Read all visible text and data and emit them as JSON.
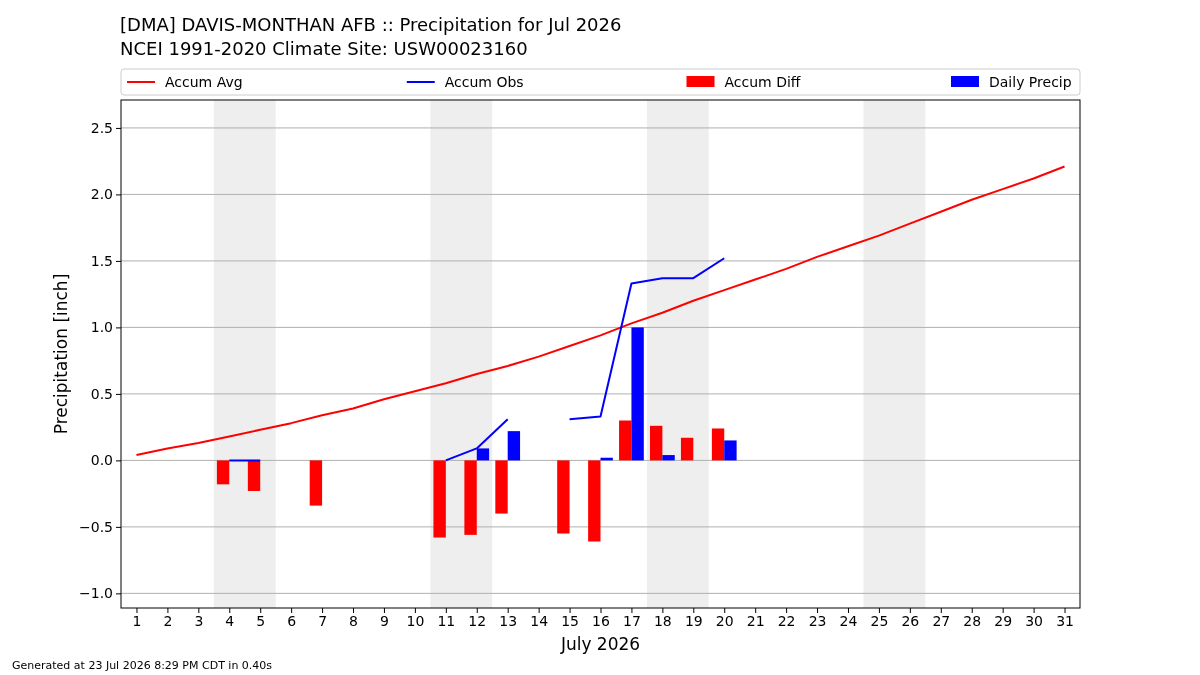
{
  "chart_data": {
    "type": "bar",
    "title": "[DMA] DAVIS-MONTHAN AFB :: Precipitation for Jul 2026",
    "subtitle": "NCEI 1991-2020 Climate Site: USW00023160",
    "xlabel": "July 2026",
    "ylabel": "Precipitation [inch]",
    "x": [
      1,
      2,
      3,
      4,
      5,
      6,
      7,
      8,
      9,
      10,
      11,
      12,
      13,
      14,
      15,
      16,
      17,
      18,
      19,
      20,
      21,
      22,
      23,
      24,
      25,
      26,
      27,
      28,
      29,
      30,
      31
    ],
    "xlim": [
      0.5,
      31.5
    ],
    "xticks": [
      1,
      2,
      3,
      4,
      5,
      6,
      7,
      8,
      9,
      10,
      11,
      12,
      13,
      14,
      15,
      16,
      17,
      18,
      19,
      20,
      21,
      22,
      23,
      24,
      25,
      26,
      27,
      28,
      29,
      30,
      31
    ],
    "ylim": [
      -1.11,
      2.71
    ],
    "yticks": [
      {
        "value": -1,
        "label": "−1.0"
      },
      {
        "value": -0.5,
        "label": "−0.5"
      },
      {
        "value": 0,
        "label": "0.0"
      },
      {
        "value": 0.5,
        "label": "0.5"
      },
      {
        "value": 1,
        "label": "1.0"
      },
      {
        "value": 1.5,
        "label": "1.5"
      },
      {
        "value": 2,
        "label": "2.0"
      },
      {
        "value": 2.5,
        "label": "2.5"
      }
    ],
    "grid": "y",
    "legend": "top",
    "bands": [
      {
        "axis": "x",
        "from": 3.5,
        "to": 5.5,
        "color": "#eeeeee"
      },
      {
        "axis": "x",
        "from": 10.5,
        "to": 12.5,
        "color": "#eeeeee"
      },
      {
        "axis": "x",
        "from": 17.5,
        "to": 19.5,
        "color": "#eeeeee"
      },
      {
        "axis": "x",
        "from": 24.5,
        "to": 26.5,
        "color": "#eeeeee"
      }
    ],
    "series": [
      {
        "name": "Accum Avg",
        "type": "line",
        "color": "#ff0000",
        "values": [
          0.04,
          0.09,
          0.13,
          0.18,
          0.23,
          0.28,
          0.34,
          0.39,
          0.46,
          0.52,
          0.58,
          0.65,
          0.71,
          0.78,
          0.86,
          0.94,
          1.03,
          1.11,
          1.2,
          1.28,
          1.36,
          1.44,
          1.53,
          1.61,
          1.69,
          1.78,
          1.87,
          1.96,
          2.04,
          2.12,
          2.21
        ]
      },
      {
        "name": "Accum Obs",
        "type": "line",
        "color": "#0000ff",
        "values": [
          null,
          null,
          null,
          0,
          0,
          null,
          null,
          null,
          null,
          null,
          0,
          0.09,
          0.31,
          null,
          0.31,
          0.33,
          1.33,
          1.37,
          1.37,
          1.52,
          null,
          null,
          null,
          null,
          null,
          null,
          null,
          null,
          null,
          null,
          null
        ]
      },
      {
        "name": "Accum Diff",
        "color": "#ff0000",
        "values": [
          null,
          null,
          null,
          -0.18,
          -0.23,
          null,
          -0.34,
          null,
          null,
          null,
          -0.58,
          -0.56,
          -0.4,
          null,
          -0.55,
          -0.61,
          0.3,
          0.26,
          0.17,
          0.24,
          null,
          null,
          null,
          null,
          null,
          null,
          null,
          null,
          null,
          null,
          null
        ]
      },
      {
        "name": "Daily Precip",
        "color": "#0000ff",
        "values": [
          null,
          null,
          null,
          0,
          0,
          null,
          null,
          null,
          null,
          null,
          null,
          0.09,
          0.22,
          null,
          null,
          0.02,
          1,
          0.04,
          null,
          0.15,
          null,
          null,
          null,
          null,
          null,
          null,
          null,
          null,
          null,
          null,
          null
        ]
      }
    ],
    "annotations": [
      "Generated at 23 Jul 2026 8:29 PM CDT in 0.40s"
    ]
  }
}
